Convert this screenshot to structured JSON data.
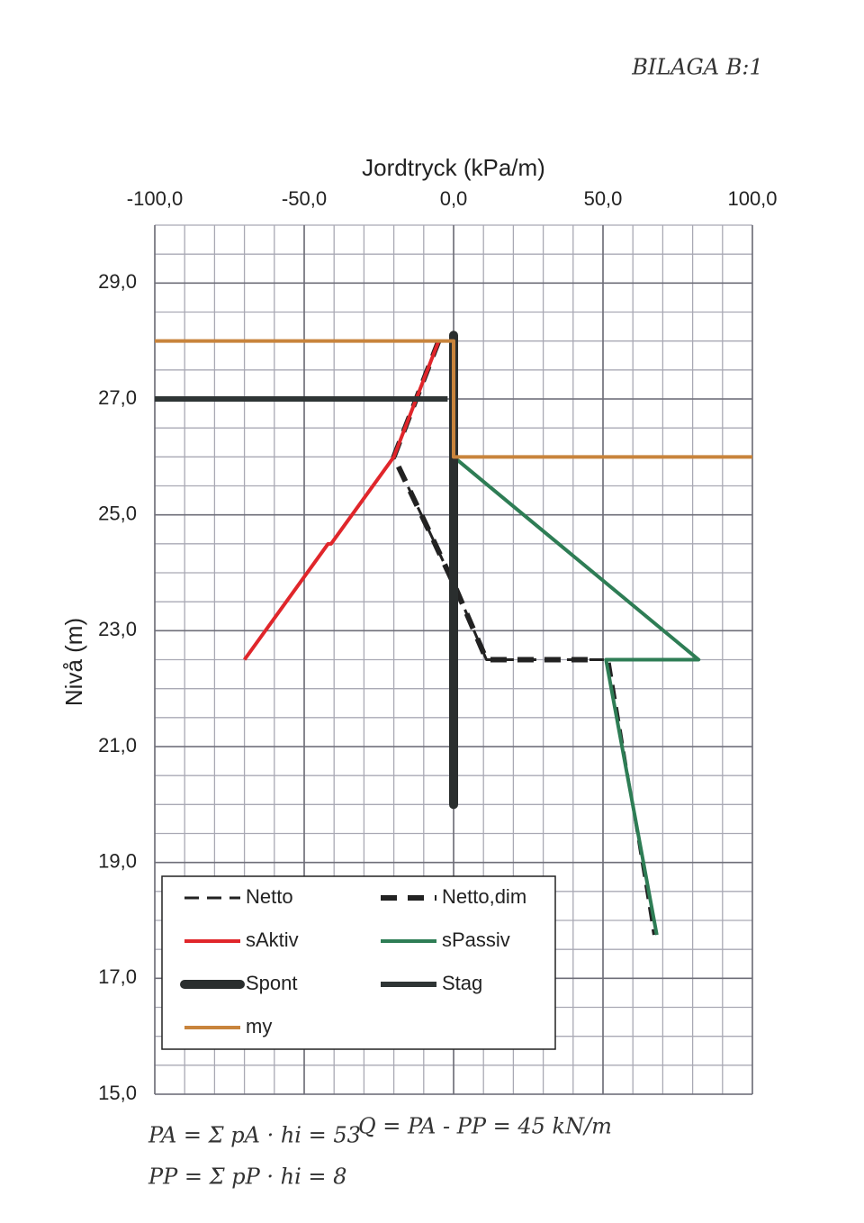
{
  "chart_data": {
    "type": "line",
    "title": "Jordtryck (kPa/m)",
    "y_label": "Nivå (m)",
    "xlim": [
      -100,
      100
    ],
    "ylim": [
      15,
      30
    ],
    "xticks": [
      {
        "value": -100,
        "label": "-100,0"
      },
      {
        "value": -50,
        "label": "-50,0"
      },
      {
        "value": 0,
        "label": "0,0"
      },
      {
        "value": 50,
        "label": "50,0"
      },
      {
        "value": 100,
        "label": "100,0"
      }
    ],
    "yticks": [
      {
        "value": 15,
        "label": "15,0"
      },
      {
        "value": 17,
        "label": "17,0"
      },
      {
        "value": 19,
        "label": "19,0"
      },
      {
        "value": 21,
        "label": "21,0"
      },
      {
        "value": 23,
        "label": "23,0"
      },
      {
        "value": 25,
        "label": "25,0"
      },
      {
        "value": 27,
        "label": "27,0"
      },
      {
        "value": 29,
        "label": "29,0"
      }
    ],
    "grid": true,
    "minor_grid": {
      "x": 10,
      "y": 0.5
    },
    "legend": "lower left",
    "series": [
      {
        "name": "Netto",
        "color": "#222222",
        "linestyle": "dashed",
        "weight": "thin",
        "x": [
          -5,
          -20,
          -8,
          1,
          11,
          52,
          67
        ],
        "y": [
          28,
          26,
          24.7,
          23.7,
          22.5,
          22.5,
          17.75
        ]
      },
      {
        "name": "Netto,dim",
        "color": "#222222",
        "linestyle": "dashed",
        "weight": "thick",
        "x": [
          -5,
          -20,
          -8,
          1,
          11,
          46
        ],
        "y": [
          28,
          26,
          24.7,
          23.7,
          22.5,
          22.5
        ]
      },
      {
        "name": "sAktiv",
        "color": "#e0262b",
        "linestyle": "solid",
        "weight": "medium",
        "x": [
          -5,
          -20,
          -41,
          -42,
          -70
        ],
        "y": [
          28,
          26,
          24.5,
          24.5,
          22.5
        ]
      },
      {
        "name": "sPassiv",
        "color": "#2e7d55",
        "linestyle": "solid",
        "weight": "medium",
        "x": [
          0,
          82,
          51,
          68
        ],
        "y": [
          26,
          22.5,
          22.5,
          17.75
        ]
      },
      {
        "name": "Spont",
        "color": "#2a2e2e",
        "linestyle": "solid",
        "weight": "heavy",
        "x": [
          0,
          0
        ],
        "y": [
          28.1,
          20
        ]
      },
      {
        "name": "Stag",
        "color": "#2f3535",
        "linestyle": "solid",
        "weight": "thick",
        "x": [
          -100,
          -2
        ],
        "y": [
          27,
          27
        ]
      },
      {
        "name": "my",
        "color": "#c8843c",
        "linestyle": "solid",
        "weight": "medium",
        "x": [
          -100,
          0,
          0,
          100
        ],
        "y": [
          28,
          28,
          26,
          26
        ]
      }
    ],
    "annotations": [
      "BILAGA B:1",
      "PA = Σ pA · hi = 53",
      "PP = Σ pP · hi = 8",
      "Q = PA - PP = 45 kN/m"
    ]
  }
}
